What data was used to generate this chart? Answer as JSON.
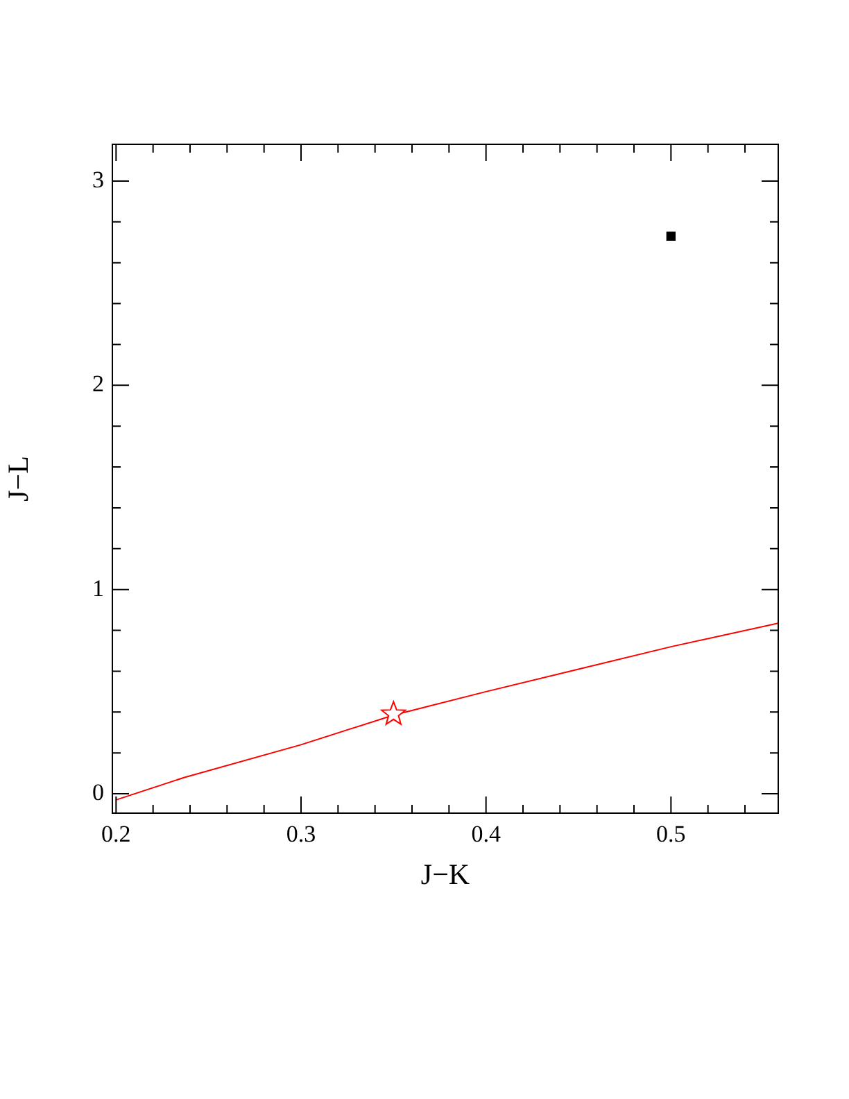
{
  "chart_data": {
    "type": "line",
    "xlabel": "J−K",
    "ylabel": "J−L",
    "xlim": [
      0.198,
      0.558
    ],
    "ylim": [
      -0.095,
      3.18
    ],
    "xticks": [
      0.2,
      {
        "value": 0.22,
        "label": null
      },
      {
        "value": 0.24,
        "label": null
      },
      {
        "value": 0.26,
        "label": null
      },
      {
        "value": 0.28,
        "label": null
      },
      0.3,
      {
        "value": 0.32,
        "label": null
      },
      {
        "value": 0.34,
        "label": null
      },
      {
        "value": 0.36,
        "label": null
      },
      {
        "value": 0.38,
        "label": null
      },
      0.4,
      {
        "value": 0.42,
        "label": null
      },
      {
        "value": 0.44,
        "label": null
      },
      {
        "value": 0.46,
        "label": null
      },
      {
        "value": 0.48,
        "label": null
      },
      0.5,
      {
        "value": 0.52,
        "label": null
      },
      {
        "value": 0.54,
        "label": null
      }
    ],
    "yticks": [
      0,
      {
        "value": 0.2,
        "label": null
      },
      {
        "value": 0.4,
        "label": null
      },
      {
        "value": 0.6,
        "label": null
      },
      {
        "value": 0.8,
        "label": null
      },
      1,
      {
        "value": 1.2,
        "label": null
      },
      {
        "value": 1.4,
        "label": null
      },
      {
        "value": 1.6,
        "label": null
      },
      {
        "value": 1.8,
        "label": null
      },
      2,
      {
        "value": 2.2,
        "label": null
      },
      {
        "value": 2.4,
        "label": null
      },
      {
        "value": 2.6,
        "label": null
      },
      {
        "value": 2.8,
        "label": null
      },
      3
    ],
    "grid": false,
    "legend": false,
    "series": [
      {
        "color": "#ff0000",
        "marker": "none",
        "line_style": "solid",
        "x": [
          0.2,
          0.237,
          0.3,
          0.35,
          0.4,
          0.45,
          0.5,
          0.558
        ],
        "values": [
          -0.03,
          0.08,
          0.24,
          0.385,
          0.5,
          0.61,
          0.72,
          0.835
        ]
      },
      {
        "type": "scatter",
        "color": "#ff0000",
        "marker": "star",
        "x": [
          0.35
        ],
        "values": [
          0.39
        ]
      },
      {
        "type": "scatter",
        "color": "#000000",
        "marker": "square",
        "x": [
          0.5
        ],
        "values": [
          2.73
        ]
      }
    ]
  }
}
